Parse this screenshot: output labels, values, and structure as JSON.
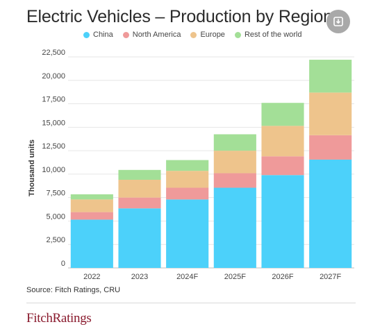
{
  "header": {
    "title": "Electric Vehicles – Production by Region",
    "download_icon": "download-icon"
  },
  "colors": {
    "China": "#4cd1fa",
    "North America": "#ef9a9a",
    "Europe": "#eec48c",
    "Rest of the world": "#a3df97"
  },
  "chart_data": {
    "type": "bar",
    "stacked": true,
    "title": "Electric Vehicles – Production by Region",
    "xlabel": "",
    "ylabel": "Thousand units",
    "categories": [
      "2022",
      "2023",
      "2024F",
      "2025F",
      "2026F",
      "2027F"
    ],
    "series": [
      {
        "name": "China",
        "values": [
          5150,
          6350,
          7300,
          8550,
          9900,
          11550
        ]
      },
      {
        "name": "North America",
        "values": [
          800,
          1150,
          1250,
          1550,
          2000,
          2600
        ]
      },
      {
        "name": "Europe",
        "values": [
          1350,
          1900,
          1800,
          2400,
          3250,
          4550
        ]
      },
      {
        "name": "Rest of the world",
        "values": [
          550,
          1050,
          1150,
          1750,
          2450,
          3500
        ]
      }
    ],
    "ylim": [
      0,
      22500
    ],
    "yticks": [
      "0",
      "2,500",
      "5,000",
      "7,500",
      "10,000",
      "12,500",
      "15,000",
      "17,500",
      "20,000",
      "22,500"
    ],
    "ytick_values": [
      0,
      2500,
      5000,
      7500,
      10000,
      12500,
      15000,
      17500,
      20000,
      22500
    ],
    "grid": "horizontal",
    "legend_position": "top"
  },
  "footer": {
    "source": "Source: Fitch Ratings, CRU",
    "logo": "FitchRatings"
  }
}
